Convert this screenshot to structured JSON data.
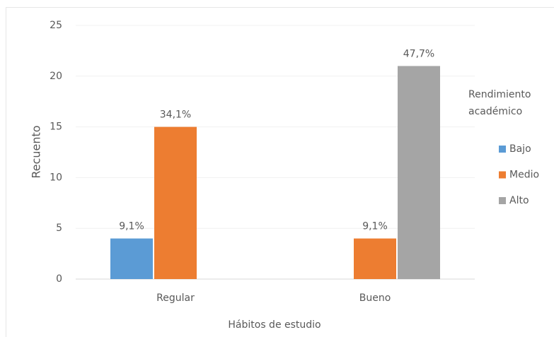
{
  "chart_data": {
    "type": "bar",
    "x_label": "Hábitos de estudio",
    "y_label": "Recuento",
    "legend_title": "Rendimiento académico",
    "categories": [
      "Regular",
      "Bueno"
    ],
    "series": [
      {
        "name": "Bajo",
        "color": "#5b9bd5",
        "values": [
          4,
          null
        ],
        "labels": [
          "9,1%",
          null
        ]
      },
      {
        "name": "Medio",
        "color": "#ed7d31",
        "values": [
          15,
          4
        ],
        "labels": [
          "34,1%",
          "9,1%"
        ]
      },
      {
        "name": "Alto",
        "color": "#a5a5a5",
        "values": [
          null,
          21
        ],
        "labels": [
          null,
          "47,7%"
        ]
      }
    ],
    "ylim": [
      0,
      25
    ],
    "yticks": [
      0,
      5,
      10,
      15,
      20,
      25
    ],
    "grid": true,
    "legend": "right"
  }
}
